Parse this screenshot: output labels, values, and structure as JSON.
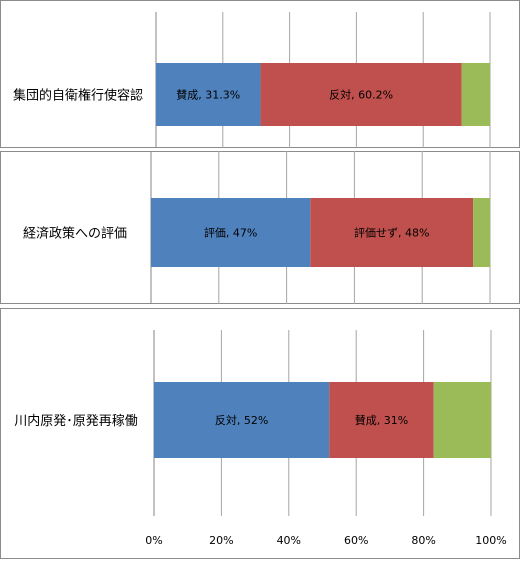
{
  "chart_data": [
    {
      "type": "bar",
      "orientation": "horizontal",
      "stacked": true,
      "percent_axis": true,
      "categories": [
        "集団的自衛権行使容認"
      ],
      "segments": [
        {
          "value": 31.3,
          "label": "賛成, 31.3%",
          "color": "#4f81bd"
        },
        {
          "value": 60.2,
          "label": "反対, 60.2%",
          "color": "#c0504d"
        },
        {
          "value": 8.5,
          "label": "",
          "color": "#9bbb59"
        }
      ],
      "grid": true
    },
    {
      "type": "bar",
      "orientation": "horizontal",
      "stacked": true,
      "percent_axis": true,
      "categories": [
        "経済政策への評価"
      ],
      "segments": [
        {
          "value": 47,
          "label": "評価, 47%",
          "color": "#4f81bd"
        },
        {
          "value": 48,
          "label": "評価せず, 48%",
          "color": "#c0504d"
        },
        {
          "value": 5,
          "label": "",
          "color": "#9bbb59"
        }
      ],
      "grid": true
    },
    {
      "type": "bar",
      "orientation": "horizontal",
      "stacked": true,
      "percent_axis": true,
      "categories": [
        "川内原発･原発再稼働"
      ],
      "segments": [
        {
          "value": 52,
          "label": "反対, 52%",
          "color": "#4f81bd"
        },
        {
          "value": 31,
          "label": "賛成, 31%",
          "color": "#c0504d"
        },
        {
          "value": 17,
          "label": "",
          "color": "#9bbb59"
        }
      ],
      "grid": true,
      "x_ticks": [
        "0%",
        "20%",
        "40%",
        "60%",
        "80%",
        "100%"
      ]
    }
  ]
}
